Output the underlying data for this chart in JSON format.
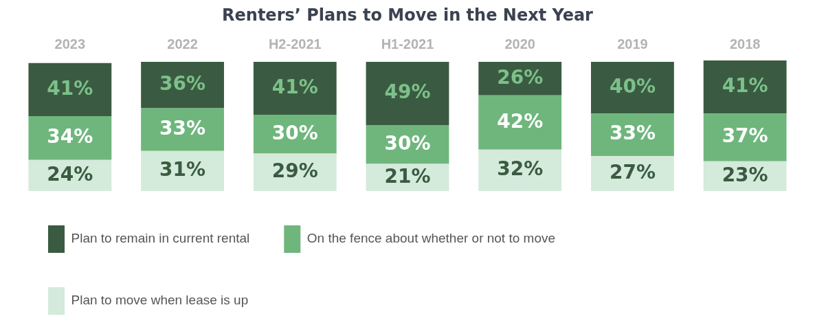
{
  "chart_data": {
    "type": "bar",
    "title": "Renters’ Plans to Move in the Next Year",
    "stacked": true,
    "legend": "bottom",
    "grid": false,
    "categories": [
      "2023",
      "2022",
      "H2-2021",
      "H1-2021",
      "2020",
      "2019",
      "2018"
    ],
    "series": [
      {
        "name": "Plan to move when lease is up",
        "color": "#d4eadb",
        "values": [
          24,
          31,
          29,
          21,
          32,
          27,
          23
        ],
        "value_labels": [
          "24%",
          "31%",
          "29%",
          "21%",
          "32%",
          "27%",
          "23%"
        ]
      },
      {
        "name": "On the fence about whether or not to move",
        "color": "#6fb67d",
        "values": [
          34,
          33,
          30,
          30,
          42,
          33,
          37
        ],
        "value_labels": [
          "34%",
          "33%",
          "30%",
          "30%",
          "42%",
          "33%",
          "37%"
        ]
      },
      {
        "name": "Plan to remain in current rental",
        "color": "#3a5b41",
        "values": [
          41,
          36,
          41,
          49,
          26,
          40,
          41
        ],
        "value_labels": [
          "41%",
          "36%",
          "41%",
          "49%",
          "26%",
          "40%",
          "41%"
        ]
      }
    ]
  }
}
